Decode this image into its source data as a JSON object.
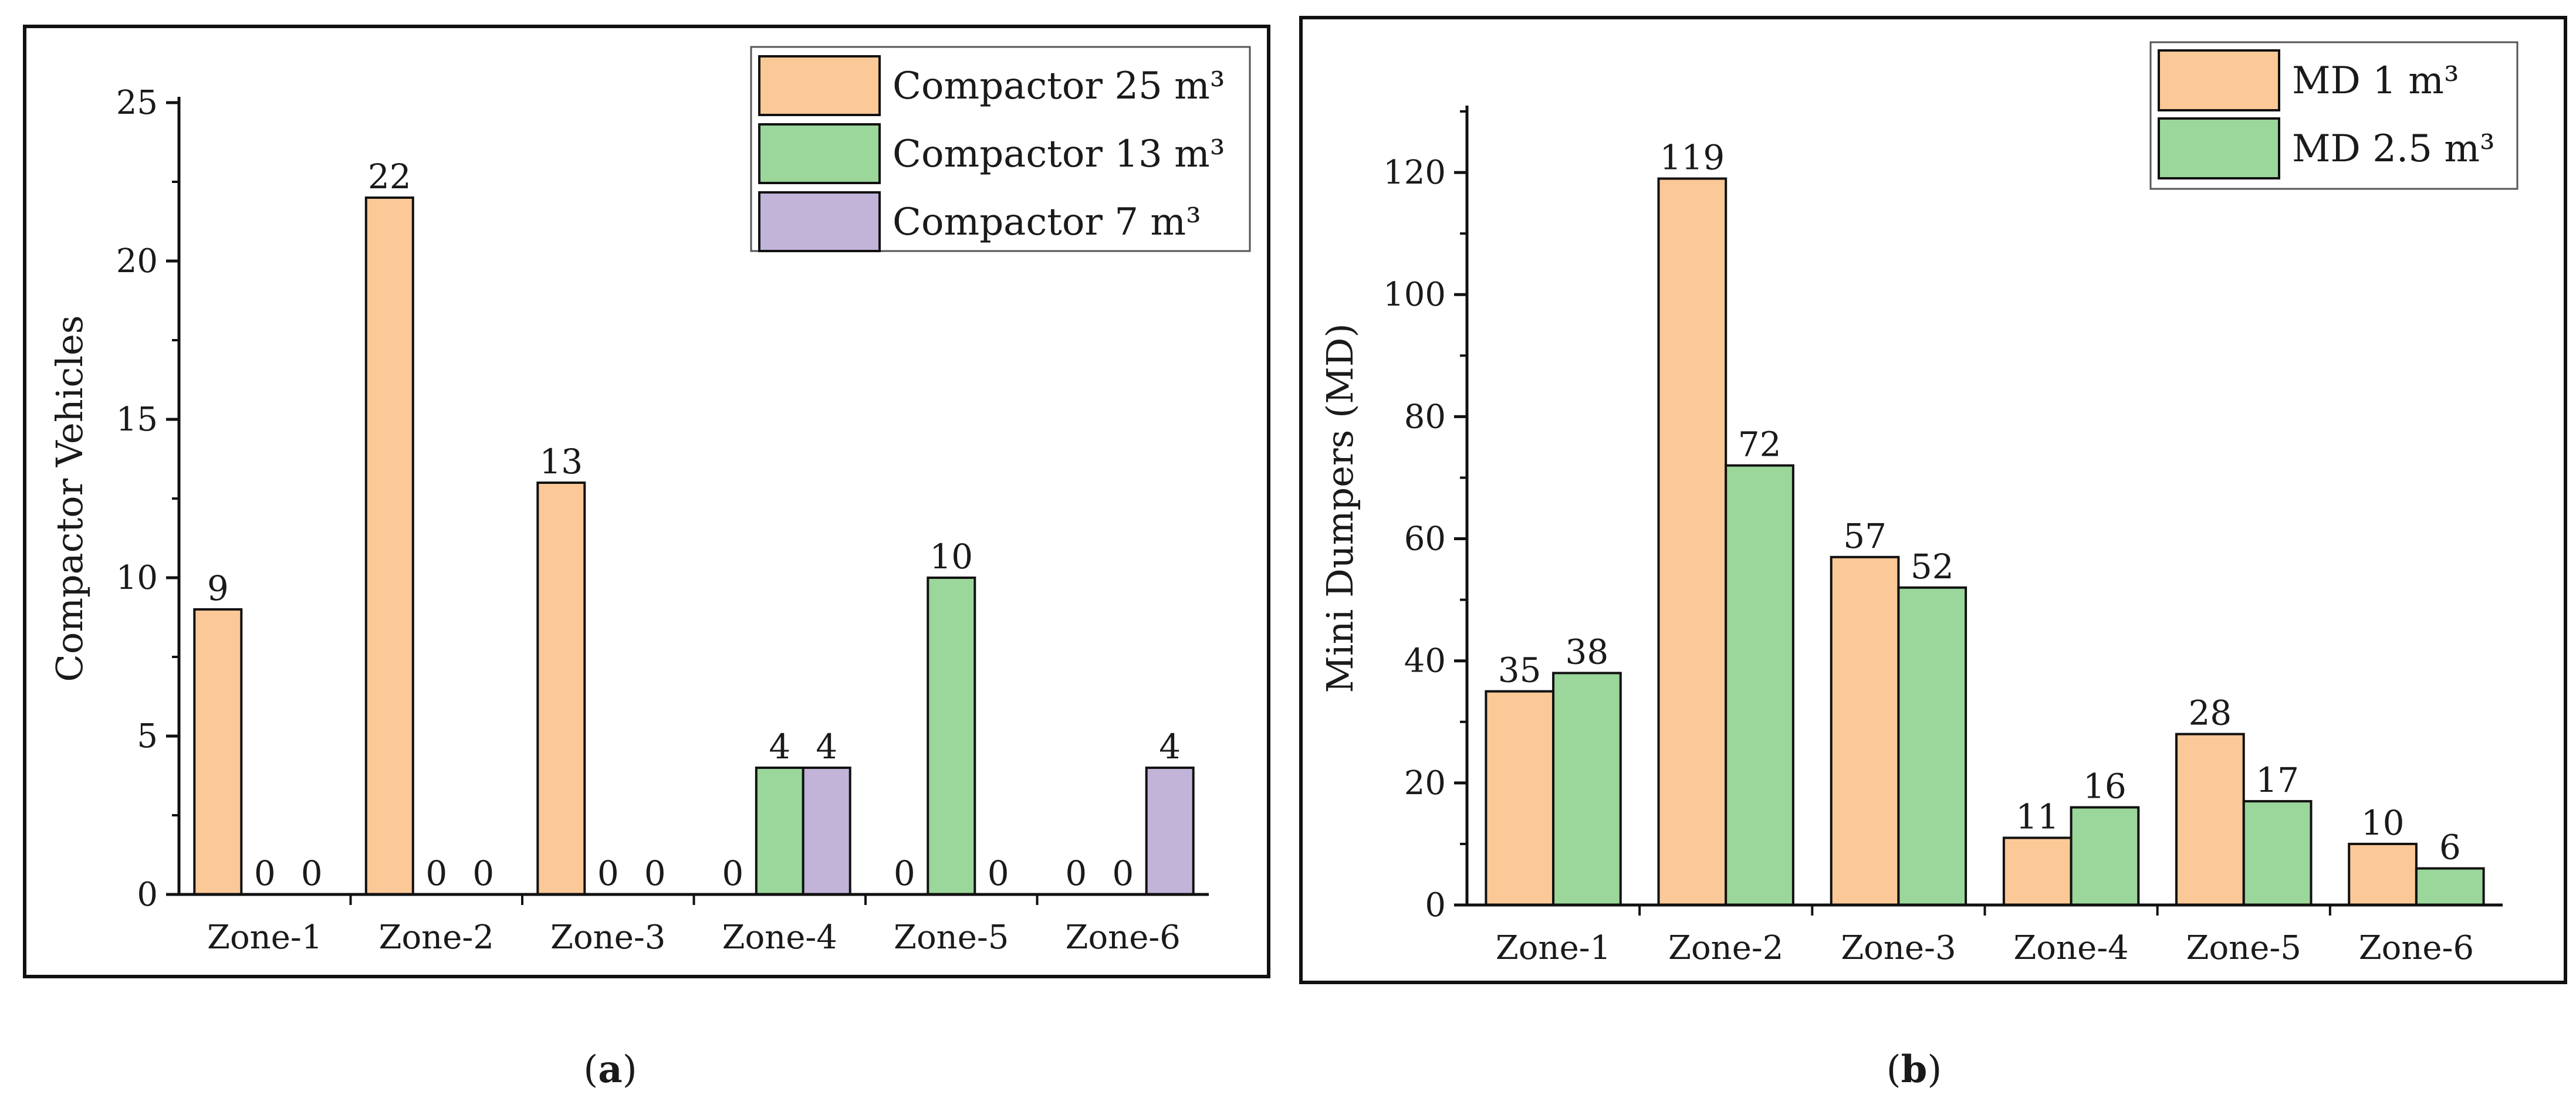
{
  "figure": {
    "panel_a_caption": "a",
    "panel_b_caption": "b",
    "caption_open": "(",
    "caption_close": ")"
  },
  "colors": {
    "compactor_25": "#fbc897",
    "compactor_13": "#9bd69b",
    "compactor_7": "#c2b3d9",
    "md_1": "#fbc897",
    "md_2_5": "#9bd69b",
    "axis": "#111111"
  },
  "chart_data": [
    {
      "type": "bar",
      "panel": "a",
      "title": "",
      "xlabel": "",
      "ylabel": "Compactor Vehicles",
      "ylim": [
        0,
        25
      ],
      "yticks": [
        0,
        5,
        10,
        15,
        20,
        25
      ],
      "categories": [
        "Zone-1",
        "Zone-2",
        "Zone-3",
        "Zone-4",
        "Zone-5",
        "Zone-6"
      ],
      "legend_position": "top-right",
      "series": [
        {
          "name": "Compactor 25 m³",
          "color_key": "compactor_25",
          "values": [
            9,
            22,
            13,
            0,
            0,
            0
          ]
        },
        {
          "name": "Compactor 13 m³",
          "color_key": "compactor_13",
          "values": [
            0,
            0,
            0,
            4,
            10,
            0
          ]
        },
        {
          "name": "Compactor 7 m³",
          "color_key": "compactor_7",
          "values": [
            0,
            0,
            0,
            4,
            0,
            4
          ]
        }
      ]
    },
    {
      "type": "bar",
      "panel": "b",
      "title": "",
      "xlabel": "",
      "ylabel": "Mini Dumpers (MD)",
      "ylim": [
        0,
        130
      ],
      "yticks": [
        0,
        20,
        40,
        60,
        80,
        100,
        120
      ],
      "categories": [
        "Zone-1",
        "Zone-2",
        "Zone-3",
        "Zone-4",
        "Zone-5",
        "Zone-6"
      ],
      "legend_position": "top-right",
      "series": [
        {
          "name": "MD 1 m³",
          "color_key": "md_1",
          "values": [
            35,
            119,
            57,
            11,
            28,
            10
          ]
        },
        {
          "name": "MD 2.5 m³",
          "color_key": "md_2_5",
          "values": [
            38,
            72,
            52,
            16,
            17,
            6
          ]
        }
      ]
    }
  ]
}
